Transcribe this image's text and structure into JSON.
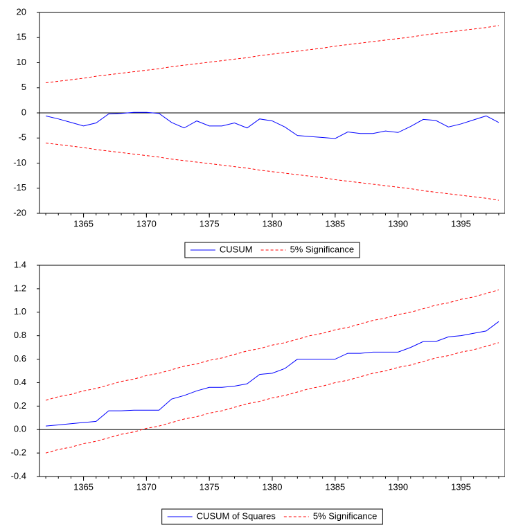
{
  "chart_data": [
    {
      "type": "line",
      "x": [
        1362,
        1363,
        1364,
        1365,
        1366,
        1367,
        1368,
        1369,
        1370,
        1371,
        1372,
        1373,
        1374,
        1375,
        1376,
        1377,
        1378,
        1379,
        1380,
        1381,
        1382,
        1383,
        1384,
        1385,
        1386,
        1387,
        1388,
        1389,
        1390,
        1391,
        1392,
        1393,
        1394,
        1395,
        1396,
        1397,
        1398
      ],
      "series": [
        {
          "name": "CUSUM",
          "color": "#0000ff",
          "values": [
            -0.6,
            -1.2,
            -1.9,
            -2.6,
            -2.0,
            -0.2,
            -0.1,
            0.1,
            0.1,
            -0.1,
            -1.9,
            -3.0,
            -1.6,
            -2.6,
            -2.6,
            -2.0,
            -3.0,
            -1.2,
            -1.6,
            -2.8,
            -4.5,
            -4.7,
            -4.9,
            -5.1,
            -3.8,
            -4.1,
            -4.1,
            -3.6,
            -3.9,
            -2.7,
            -1.3,
            -1.5,
            -2.8,
            -2.2,
            -1.4,
            -0.6,
            -1.9
          ]
        },
        {
          "name": "5% Significance",
          "color": "#ff0000",
          "dashed": true,
          "upper": [
            6.0,
            6.3,
            6.6,
            6.9,
            7.3,
            7.6,
            7.9,
            8.2,
            8.5,
            8.8,
            9.2,
            9.5,
            9.8,
            10.1,
            10.4,
            10.7,
            11.0,
            11.4,
            11.7,
            12.0,
            12.3,
            12.6,
            12.9,
            13.3,
            13.6,
            13.9,
            14.2,
            14.5,
            14.8,
            15.1,
            15.5,
            15.8,
            16.1,
            16.4,
            16.7,
            17.0,
            17.4
          ],
          "lower": [
            -6.0,
            -6.3,
            -6.6,
            -6.9,
            -7.3,
            -7.6,
            -7.9,
            -8.2,
            -8.5,
            -8.8,
            -9.2,
            -9.5,
            -9.8,
            -10.1,
            -10.4,
            -10.7,
            -11.0,
            -11.4,
            -11.7,
            -12.0,
            -12.3,
            -12.6,
            -12.9,
            -13.3,
            -13.6,
            -13.9,
            -14.2,
            -14.5,
            -14.8,
            -15.1,
            -15.5,
            -15.8,
            -16.1,
            -16.4,
            -16.7,
            -17.0,
            -17.4
          ]
        }
      ],
      "reference_line": 0,
      "xlim": [
        1361.5,
        1398.5
      ],
      "xticks": [
        1365,
        1370,
        1375,
        1380,
        1385,
        1390,
        1395
      ],
      "ylim": [
        -20,
        20
      ],
      "yticks": [
        20,
        15,
        10,
        5,
        0,
        -5,
        -10,
        -15,
        -20
      ]
    },
    {
      "type": "line",
      "x": [
        1362,
        1363,
        1364,
        1365,
        1366,
        1367,
        1368,
        1369,
        1370,
        1371,
        1372,
        1373,
        1374,
        1375,
        1376,
        1377,
        1378,
        1379,
        1380,
        1381,
        1382,
        1383,
        1384,
        1385,
        1386,
        1387,
        1388,
        1389,
        1390,
        1391,
        1392,
        1393,
        1394,
        1395,
        1396,
        1397,
        1398
      ],
      "series": [
        {
          "name": "CUSUM of Squares",
          "color": "#0000ff",
          "values": [
            0.03,
            0.04,
            0.05,
            0.06,
            0.07,
            0.16,
            0.16,
            0.165,
            0.165,
            0.165,
            0.26,
            0.29,
            0.33,
            0.36,
            0.36,
            0.37,
            0.39,
            0.47,
            0.48,
            0.52,
            0.6,
            0.6,
            0.6,
            0.6,
            0.65,
            0.65,
            0.66,
            0.66,
            0.66,
            0.7,
            0.75,
            0.75,
            0.79,
            0.8,
            0.82,
            0.84,
            0.92
          ]
        },
        {
          "name": "5% Significance",
          "color": "#ff0000",
          "dashed": true,
          "upper": [
            0.25,
            0.28,
            0.3,
            0.33,
            0.35,
            0.38,
            0.41,
            0.43,
            0.46,
            0.48,
            0.51,
            0.54,
            0.56,
            0.59,
            0.61,
            0.64,
            0.67,
            0.69,
            0.72,
            0.74,
            0.77,
            0.8,
            0.82,
            0.85,
            0.87,
            0.9,
            0.93,
            0.95,
            0.98,
            1.0,
            1.03,
            1.06,
            1.08,
            1.11,
            1.13,
            1.16,
            1.19
          ],
          "lower": [
            -0.2,
            -0.17,
            -0.15,
            -0.12,
            -0.1,
            -0.07,
            -0.04,
            -0.02,
            0.01,
            0.03,
            0.06,
            0.09,
            0.11,
            0.14,
            0.16,
            0.19,
            0.22,
            0.24,
            0.27,
            0.29,
            0.32,
            0.35,
            0.37,
            0.4,
            0.42,
            0.45,
            0.48,
            0.5,
            0.53,
            0.55,
            0.58,
            0.61,
            0.63,
            0.66,
            0.68,
            0.71,
            0.74
          ]
        }
      ],
      "reference_line": 0,
      "xlim": [
        1361.5,
        1398.5
      ],
      "xticks": [
        1365,
        1370,
        1375,
        1380,
        1385,
        1390,
        1395
      ],
      "ylim": [
        -0.4,
        1.4
      ],
      "yticks": [
        1.4,
        1.2,
        {
          "value": 1.0,
          "label": "1.0"
        },
        0.8,
        0.6,
        0.4,
        0.2,
        {
          "value": 0,
          "label": "0.0"
        },
        -0.2,
        -0.4
      ]
    }
  ]
}
